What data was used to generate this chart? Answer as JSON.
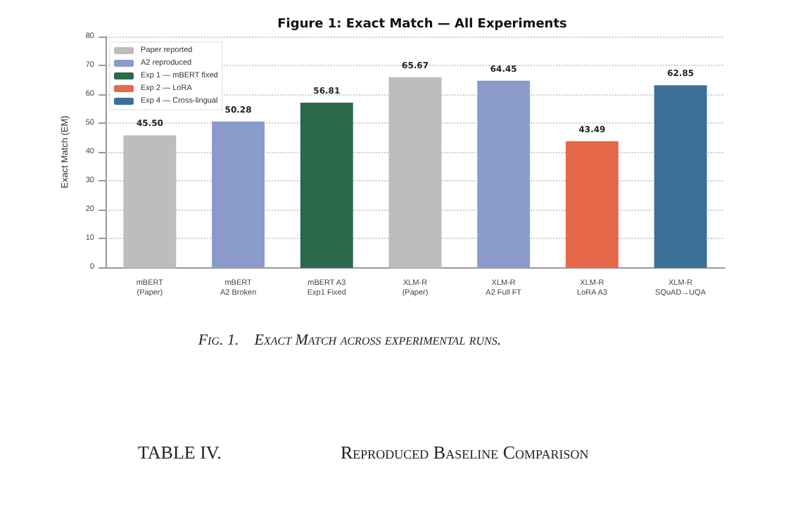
{
  "chart_data": {
    "type": "bar",
    "title": "Figure 1: Exact Match — All Experiments",
    "ylabel": "Exact Match (EM)",
    "categories": [
      "mBERT\n(Paper)",
      "mBERT\nA2 Broken",
      "mBERT A3\nExp1 Fixed",
      "XLM-R\n(Paper)",
      "XLM-R\nA2 Full FT",
      "XLM-R\nLoRA A3",
      "XLM-R\nSQuAD→UQA"
    ],
    "series": [
      {
        "name": "Paper reported",
        "color": "#bdbdbd",
        "values": [
          45.5,
          null,
          null,
          65.67,
          null,
          null,
          null
        ],
        "value_labels": [
          "45.50",
          null,
          null,
          "65.67",
          null,
          null,
          null
        ]
      },
      {
        "name": "A2 reproduced",
        "color": "#8a9bcb",
        "values": [
          null,
          50.28,
          null,
          null,
          64.45,
          null,
          null
        ],
        "value_labels": [
          null,
          "50.28",
          null,
          null,
          "64.45",
          null,
          null
        ]
      },
      {
        "name": "Exp 1 — mBERT fixed",
        "color": "#2b6a4b",
        "values": [
          null,
          null,
          56.81,
          null,
          null,
          null,
          null
        ],
        "value_labels": [
          null,
          null,
          "56.81",
          null,
          null,
          null,
          null
        ]
      },
      {
        "name": "Exp 2 — LoRA",
        "color": "#e6694b",
        "values": [
          null,
          null,
          null,
          null,
          null,
          43.49,
          null
        ],
        "value_labels": [
          null,
          null,
          null,
          null,
          null,
          "43.49",
          null
        ]
      },
      {
        "name": "Exp 4 — Cross-lingual",
        "color": "#3b7099",
        "values": [
          null,
          null,
          null,
          null,
          null,
          null,
          62.85
        ],
        "value_labels": [
          null,
          null,
          null,
          null,
          null,
          null,
          "62.85"
        ]
      }
    ],
    "ylim": [
      0,
      80
    ],
    "yticks": [
      0,
      10,
      20,
      30,
      40,
      50,
      60,
      70,
      80
    ],
    "grid": "y",
    "legend": "top left",
    "annotations": [
      "Fig. 1.    Exact Match across experimental runs.",
      "TABLE IV.",
      "Reproduced Baseline Comparison"
    ]
  }
}
